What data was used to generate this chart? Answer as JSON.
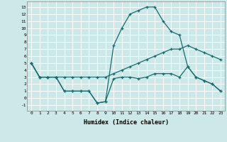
{
  "xlabel": "Humidex (Indice chaleur)",
  "background_color": "#cce8e8",
  "grid_color": "#ffffff",
  "line_color": "#1a6b6b",
  "xlim": [
    -0.5,
    23.5
  ],
  "ylim": [
    -1.8,
    13.8
  ],
  "xticks": [
    0,
    1,
    2,
    3,
    4,
    5,
    6,
    7,
    8,
    9,
    10,
    11,
    12,
    13,
    14,
    15,
    16,
    17,
    18,
    19,
    20,
    21,
    22,
    23
  ],
  "yticks": [
    -1,
    0,
    1,
    2,
    3,
    4,
    5,
    6,
    7,
    8,
    9,
    10,
    11,
    12,
    13
  ],
  "line_spike_x": [
    0,
    1,
    2,
    3,
    4,
    5,
    6,
    7,
    8,
    9,
    10,
    11,
    12,
    13,
    14,
    15,
    16,
    17,
    18,
    19,
    20,
    21,
    22,
    23
  ],
  "line_spike_y": [
    5,
    3,
    3,
    3,
    1,
    1,
    1,
    1,
    -0.7,
    -0.5,
    7.5,
    10,
    12,
    12.5,
    13,
    13,
    11,
    9.5,
    9,
    4.5,
    3,
    2.5,
    2,
    1
  ],
  "line_diag_x": [
    0,
    1,
    2,
    3,
    4,
    5,
    6,
    7,
    8,
    9,
    10,
    11,
    12,
    13,
    14,
    15,
    16,
    17,
    18,
    19,
    20,
    21,
    22,
    23
  ],
  "line_diag_y": [
    5,
    3,
    3,
    3,
    3,
    3,
    3,
    3,
    3,
    3,
    3.5,
    4,
    4.5,
    5,
    5.5,
    6,
    6.5,
    7,
    7,
    7.5,
    7,
    6.5,
    6,
    5.5
  ],
  "line_flat_x": [
    0,
    1,
    2,
    3,
    4,
    5,
    6,
    7,
    8,
    9,
    10,
    11,
    12,
    13,
    14,
    15,
    16,
    17,
    18,
    19,
    20,
    21,
    22,
    23
  ],
  "line_flat_y": [
    5,
    3,
    3,
    3,
    1,
    1,
    1,
    1,
    -0.7,
    -0.5,
    2.8,
    3,
    3,
    2.8,
    3,
    3.5,
    3.5,
    3.5,
    3,
    4.5,
    3,
    2.5,
    2,
    1
  ]
}
